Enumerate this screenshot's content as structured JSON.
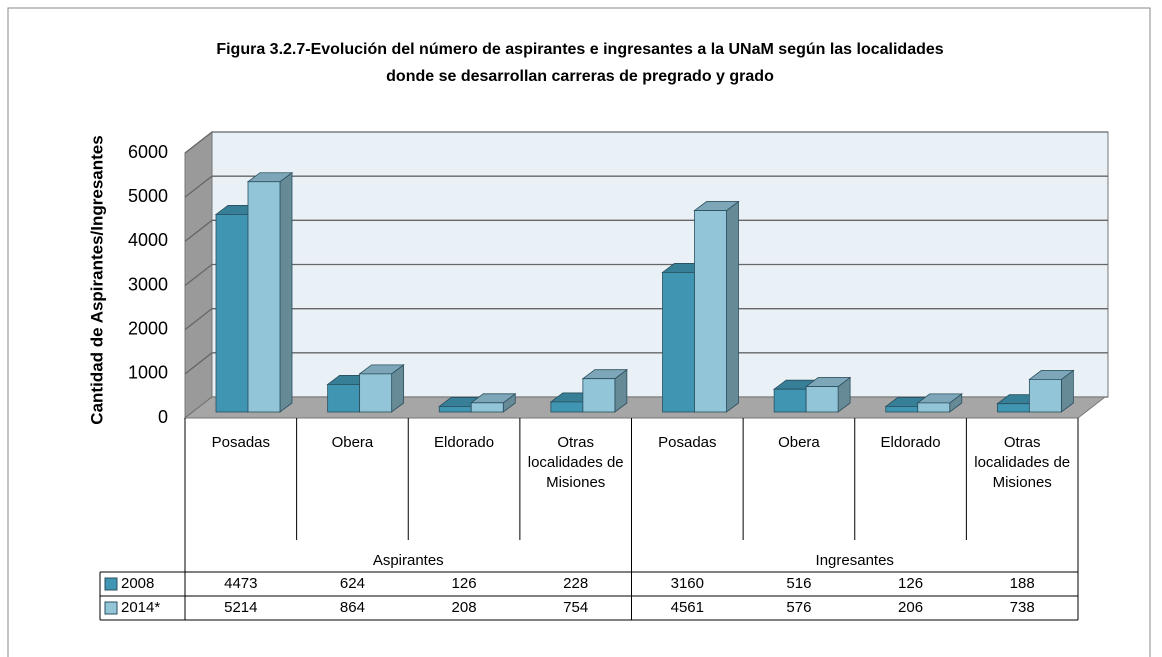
{
  "chart_data": {
    "type": "bar",
    "title": "Figura 3.2.7-Evolución del número de aspirantes e ingresantes a la UNaM según las localidades donde se desarrollan carreras de pregrado y grado",
    "y_label": "Cantidad de  Aspirantes/Ingresantes",
    "groups": [
      "Aspirantes",
      "Ingresantes"
    ],
    "categories": [
      "Posadas",
      "Obera",
      "Eldorado",
      "Otras localidades de Misiones",
      "Posadas",
      "Obera",
      "Eldorado",
      "Otras localidades de Misiones"
    ],
    "series": [
      {
        "name": "2008",
        "color": "#3f95b2",
        "values": [
          4473,
          624,
          126,
          228,
          3160,
          516,
          126,
          188
        ]
      },
      {
        "name": "2014*",
        "color": "#93c5d8",
        "values": [
          5214,
          864,
          208,
          754,
          4561,
          576,
          206,
          738
        ]
      }
    ],
    "ylim": [
      0,
      6000
    ],
    "yticks": [
      0,
      1000,
      2000,
      3000,
      4000,
      5000,
      6000
    ],
    "grid": true
  }
}
